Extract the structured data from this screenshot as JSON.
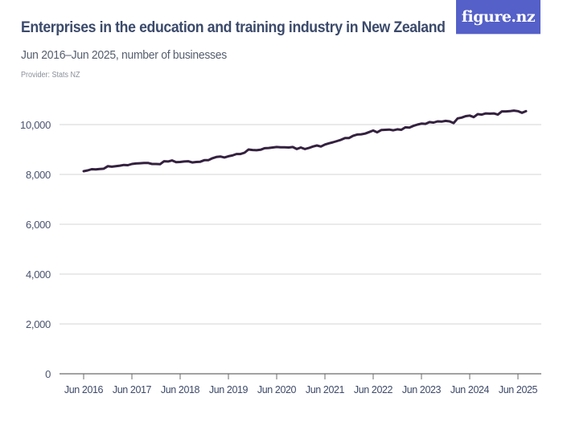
{
  "header": {
    "title": "Enterprises in the education and training industry in New Zealand",
    "subtitle": "Jun 2016–Jun 2025, number of businesses",
    "provider": "Provider: Stats NZ",
    "logo_text": "figure.nz"
  },
  "colors": {
    "line": "#34213f",
    "title": "#3b4a6b",
    "logo_bg": "#5560c8",
    "grid": "#d6d6d6",
    "axis": "#6b6b6b"
  },
  "chart_data": {
    "type": "line",
    "title": "Enterprises in the education and training industry in New Zealand",
    "subtitle": "Jun 2016–Jun 2025, number of businesses",
    "xlabel": "",
    "ylabel": "number of businesses",
    "ylim": [
      0,
      11000
    ],
    "yticks": [
      0,
      2000,
      4000,
      6000,
      8000,
      10000
    ],
    "ytick_labels": [
      "0",
      "2,000",
      "4,000",
      "6,000",
      "8,000",
      "10,000"
    ],
    "xtick_labels": [
      "Jun 2016",
      "Jun 2017",
      "Jun 2018",
      "Jun 2019",
      "Jun 2020",
      "Jun 2021",
      "Jun 2022",
      "Jun 2023",
      "Jun 2024",
      "Jun 2025"
    ],
    "grid": true,
    "legend": "none",
    "frequency": "monthly",
    "series": [
      {
        "name": "Enterprises",
        "start": "Jun 2016",
        "values": [
          8130,
          8160,
          8210,
          8200,
          8220,
          8230,
          8330,
          8310,
          8330,
          8350,
          8380,
          8370,
          8420,
          8440,
          8450,
          8460,
          8460,
          8420,
          8420,
          8410,
          8530,
          8520,
          8560,
          8490,
          8500,
          8520,
          8530,
          8480,
          8500,
          8510,
          8570,
          8570,
          8650,
          8700,
          8720,
          8680,
          8730,
          8760,
          8820,
          8820,
          8870,
          9000,
          8980,
          8970,
          8990,
          9050,
          9060,
          9080,
          9100,
          9090,
          9090,
          9080,
          9100,
          9020,
          9080,
          9020,
          9060,
          9120,
          9160,
          9120,
          9200,
          9250,
          9290,
          9340,
          9390,
          9460,
          9460,
          9550,
          9600,
          9610,
          9640,
          9700,
          9760,
          9690,
          9780,
          9790,
          9800,
          9770,
          9810,
          9790,
          9890,
          9880,
          9950,
          10000,
          10040,
          10030,
          10100,
          10080,
          10130,
          10120,
          10150,
          10130,
          10060,
          10250,
          10280,
          10340,
          10360,
          10300,
          10420,
          10400,
          10450,
          10440,
          10450,
          10400,
          10530,
          10530,
          10540,
          10560,
          10540,
          10470,
          10540
        ]
      }
    ]
  }
}
